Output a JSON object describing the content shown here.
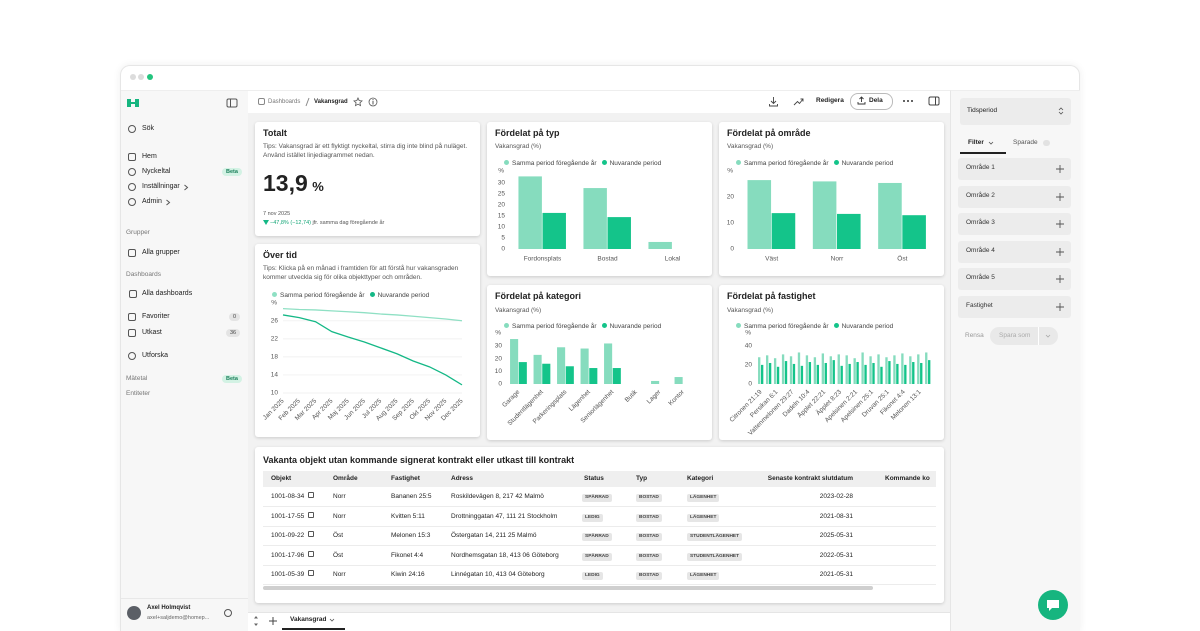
{
  "sidebar": {
    "search": "Sök",
    "nav": [
      "Hem",
      "Nyckeltal",
      "Inställningar",
      "Admin"
    ],
    "nav_badge": "Beta",
    "groups_heading": "Grupper",
    "groups_link": "Alla grupper",
    "dashboards_heading": "Dashboards",
    "dashboards_link": "Alla dashboards",
    "favorites": {
      "label": "Favoriter",
      "count": 0
    },
    "drafts": {
      "label": "Utkast",
      "count": 36
    },
    "explore": "Utforska",
    "metrics": "Mätetal",
    "metrics_badge": "Beta",
    "entities": "Entiteter",
    "user": {
      "name": "Axel Holmqvist",
      "email": "axel+saljdemo@homep..."
    }
  },
  "toolbar": {
    "breadcrumb": [
      "Dashboards",
      "Vakansgrad"
    ],
    "edit": "Redigera",
    "share": "Dela"
  },
  "total": {
    "title": "Totalt",
    "tips": "Tips: Vakansgrad är ett flyktigt nyckeltal, stirra dig inte blind på nuläget. Använd istället linjediagrammet nedan.",
    "value": "13,9",
    "unit": "%",
    "date": "7 nov 2025",
    "change": "−47,8% (−12,74)",
    "comparison": "jfr. samma dag föregående år"
  },
  "charts": [
    {
      "type": "line",
      "title": "Över tid",
      "subtitle": "Tips: Klicka på en månad i framtiden för att förstå hur vakansgraden kommer utveckla sig för olika objekttyper och områden.",
      "unit_label": "%",
      "categories": [
        "Jan 2025",
        "Feb 2025",
        "Mar 2025",
        "Apr 2025",
        "Maj 2025",
        "Jun 2025",
        "Jul 2025",
        "Aug 2025",
        "Sep 2025",
        "Okt 2025",
        "Nov 2025",
        "Dec 2025"
      ],
      "series": [
        {
          "name": "Samma period föregående år",
          "color": "#8fe0c4",
          "values": [
            28.7,
            28.5,
            28.4,
            28.2,
            28.0,
            27.8,
            27.5,
            27.3,
            27.0,
            26.7,
            26.4,
            26.0
          ]
        },
        {
          "name": "Nuvarande period",
          "color": "#14b886",
          "values": [
            27.3,
            26.7,
            25.8,
            23.6,
            22.4,
            21.3,
            20.0,
            18.7,
            17.1,
            15.8,
            14.0,
            11.8
          ]
        }
      ],
      "ylim": [
        10,
        29.5
      ],
      "yticks": [
        10,
        14,
        18,
        22,
        26
      ],
      "grid": true
    },
    {
      "type": "bar",
      "title": "Fördelat på typ",
      "subtitle": "Vakansgrad (%)",
      "unit_label": "%",
      "categories": [
        "Fordonsplats",
        "Bostad",
        "Lokal"
      ],
      "series": [
        {
          "name": "Samma period föregående år",
          "color": "#86dcbe",
          "values": [
            33,
            27.7,
            3.2
          ]
        },
        {
          "name": "Nuvarande period",
          "color": "#14c48a",
          "values": [
            16.4,
            14.5,
            0
          ]
        }
      ],
      "ylim": [
        0,
        35
      ],
      "yticks": [
        0,
        5,
        10,
        15,
        20,
        25,
        30
      ],
      "grid": false
    },
    {
      "type": "bar",
      "title": "Fördelat på område",
      "subtitle": "Vakansgrad (%)",
      "unit_label": "%",
      "categories": [
        "Väst",
        "Norr",
        "Öst"
      ],
      "series": [
        {
          "name": "Samma period föregående år",
          "color": "#86dcbe",
          "values": [
            26.5,
            26,
            25.4
          ]
        },
        {
          "name": "Nuvarande period",
          "color": "#14c48a",
          "values": [
            13.8,
            13.5,
            13
          ]
        }
      ],
      "ylim": [
        0,
        28
      ],
      "yticks": [
        0,
        10,
        20
      ],
      "grid": false
    },
    {
      "type": "bar",
      "title": "Fördelat på kategori",
      "subtitle": "Vakansgrad (%)",
      "unit_label": "%",
      "categories": [
        "Garage",
        "Studentlägenhet",
        "Parkeringsplats",
        "Lägenhet",
        "Seniorlägenhet",
        "Butik",
        "Lager",
        "Kontor"
      ],
      "series": [
        {
          "name": "Samma period föregående år",
          "color": "#86dcbe",
          "values": [
            35.5,
            23,
            29,
            28,
            32,
            0,
            2.4,
            5.5
          ]
        },
        {
          "name": "Nuvarande period",
          "color": "#14c48a",
          "values": [
            17.3,
            16,
            14,
            12.6,
            12.6,
            0,
            0,
            0
          ]
        }
      ],
      "ylim": [
        0,
        36
      ],
      "yticks": [
        0,
        10,
        20,
        30
      ],
      "grid": false
    },
    {
      "type": "bar",
      "title": "Fördelat på fastighet",
      "subtitle": "Vakansgrad (%)",
      "unit_label": "%",
      "categories": [
        "Citronen 21:19",
        null,
        "Persikan 6:1",
        null,
        "Vattenmelonen 29:27",
        null,
        "Dadeln 10:4",
        null,
        "Äpplet 22:21",
        null,
        "Äpplet 8:23",
        null,
        "Apelsinen 2:21",
        null,
        "Apelsinen 25:1",
        null,
        "Druvan 25:1",
        null,
        "Fikonet 4:4",
        null,
        "Melonen 13:1",
        null
      ],
      "series": [
        {
          "name": "Samma period föregående år",
          "color": "#86dcbe",
          "values": [
            28,
            30,
            27,
            31,
            29,
            33,
            30,
            28,
            32,
            29,
            31,
            30,
            27,
            33,
            29,
            31,
            28,
            30,
            32,
            29,
            31,
            33
          ]
        },
        {
          "name": "Nuvarande period",
          "color": "#14c48a",
          "values": [
            20,
            22,
            18,
            24,
            21,
            19,
            23,
            20,
            22,
            25,
            19,
            21,
            23,
            20,
            22,
            18,
            24,
            21,
            20,
            23,
            22,
            25
          ]
        }
      ],
      "ylim": [
        0,
        45
      ],
      "yticks": [
        0,
        20,
        40
      ],
      "grid": false
    }
  ],
  "table": {
    "title": "Vakanta objekt utan kommande signerat kontrakt eller utkast till kontrakt",
    "columns": [
      "Objekt",
      "Område",
      "Fastighet",
      "Adress",
      "Status",
      "Typ",
      "Kategori",
      "Senaste kontrakt slutdatum",
      "Kommande ko"
    ],
    "rows": [
      [
        "1001-08-34",
        "Norr",
        "Bananen 25:5",
        "Roskildevägen 8, 217 42 Malmö",
        "SPÄRRAD",
        "BOSTAD",
        "LÄGENHET",
        "2023-02-28"
      ],
      [
        "1001-17-55",
        "Norr",
        "Kvitten 5:11",
        "Drottninggatan 47, 111 21 Stockholm",
        "LEDIG",
        "BOSTAD",
        "LÄGENHET",
        "2021-08-31"
      ],
      [
        "1001-09-22",
        "Öst",
        "Melonen 15:3",
        "Östergatan 14, 211 25 Malmö",
        "SPÄRRAD",
        "BOSTAD",
        "STUDENTLÄGENHET",
        "2025-05-31"
      ],
      [
        "1001-17-96",
        "Öst",
        "Fikonet 4:4",
        "Nordhemsgatan 18, 413 06 Göteborg",
        "SPÄRRAD",
        "BOSTAD",
        "STUDENTLÄGENHET",
        "2022-05-31"
      ],
      [
        "1001-05-39",
        "Norr",
        "Kiwin 24:16",
        "Linnégatan 10, 413 04 Göteborg",
        "LEDIG",
        "BOSTAD",
        "LÄGENHET",
        "2021-05-31"
      ]
    ]
  },
  "filters": {
    "period": "Tidsperiod",
    "tabs": [
      "Filter",
      "Sparade"
    ],
    "items": [
      "Område 1",
      "Område 2",
      "Område 3",
      "Område 4",
      "Område 5",
      "Fastighet"
    ],
    "clear": "Rensa",
    "save": "Spara som"
  },
  "tab": "Vakansgrad"
}
